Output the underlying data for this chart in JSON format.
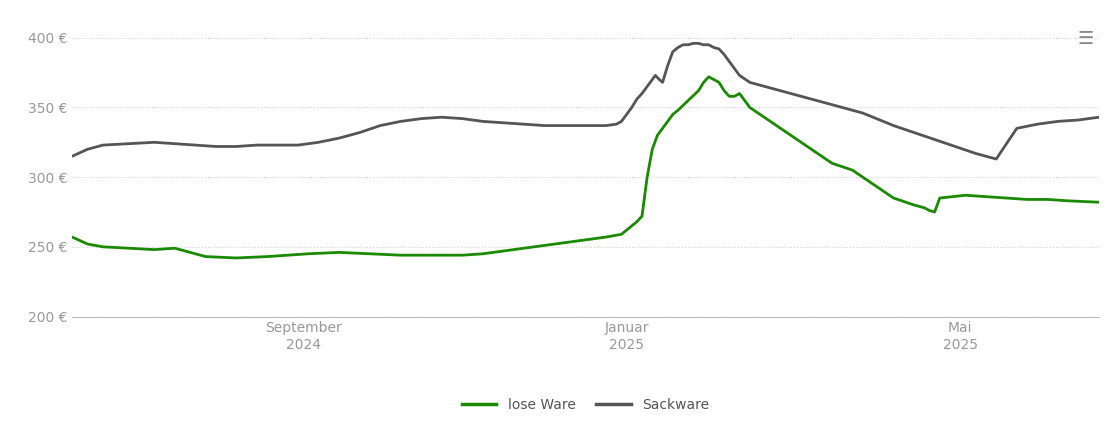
{
  "background_color": "#ffffff",
  "grid_color": "#d0d0d0",
  "lose_ware_color": "#1a8a00",
  "sackware_color": "#555555",
  "legend_labels": [
    "lose Ware",
    "Sackware"
  ],
  "xtick_labels": [
    "September\n2024",
    "Januar\n2025",
    "Mai\n2025"
  ],
  "xtick_positions": [
    0.225,
    0.54,
    0.865
  ],
  "ylim": [
    200,
    415
  ],
  "yticks": [
    200,
    250,
    300,
    350,
    400
  ],
  "ytick_labels": [
    "200 €",
    "250 €",
    "300 €",
    "350 €",
    "400 €"
  ],
  "lose_ware": {
    "x": [
      0.0,
      0.015,
      0.03,
      0.055,
      0.08,
      0.1,
      0.13,
      0.16,
      0.19,
      0.21,
      0.23,
      0.26,
      0.29,
      0.32,
      0.35,
      0.38,
      0.4,
      0.42,
      0.44,
      0.46,
      0.48,
      0.5,
      0.52,
      0.535,
      0.54,
      0.545,
      0.55,
      0.555,
      0.56,
      0.565,
      0.57,
      0.575,
      0.58,
      0.585,
      0.59,
      0.6,
      0.61,
      0.615,
      0.62,
      0.625,
      0.63,
      0.635,
      0.64,
      0.645,
      0.65,
      0.655,
      0.66,
      0.67,
      0.68,
      0.69,
      0.7,
      0.71,
      0.72,
      0.73,
      0.74,
      0.76,
      0.78,
      0.8,
      0.82,
      0.83,
      0.835,
      0.84,
      0.845,
      0.87,
      0.89,
      0.91,
      0.93,
      0.95,
      0.97,
      1.0
    ],
    "y": [
      257,
      252,
      250,
      249,
      248,
      249,
      243,
      242,
      243,
      244,
      245,
      246,
      245,
      244,
      244,
      244,
      245,
      247,
      249,
      251,
      253,
      255,
      257,
      259,
      262,
      265,
      268,
      272,
      300,
      320,
      330,
      335,
      340,
      345,
      348,
      355,
      362,
      368,
      372,
      370,
      368,
      362,
      358,
      358,
      360,
      355,
      350,
      345,
      340,
      335,
      330,
      325,
      320,
      315,
      310,
      305,
      295,
      285,
      280,
      278,
      276,
      275,
      285,
      287,
      286,
      285,
      284,
      284,
      283,
      282
    ]
  },
  "sackware": {
    "x": [
      0.0,
      0.015,
      0.03,
      0.055,
      0.08,
      0.1,
      0.12,
      0.14,
      0.16,
      0.18,
      0.2,
      0.22,
      0.24,
      0.26,
      0.28,
      0.3,
      0.32,
      0.34,
      0.36,
      0.38,
      0.4,
      0.42,
      0.44,
      0.46,
      0.48,
      0.5,
      0.52,
      0.53,
      0.535,
      0.54,
      0.545,
      0.55,
      0.555,
      0.56,
      0.565,
      0.568,
      0.572,
      0.575,
      0.58,
      0.585,
      0.59,
      0.595,
      0.6,
      0.605,
      0.61,
      0.615,
      0.62,
      0.625,
      0.63,
      0.635,
      0.64,
      0.65,
      0.66,
      0.67,
      0.68,
      0.69,
      0.7,
      0.71,
      0.72,
      0.73,
      0.74,
      0.75,
      0.76,
      0.77,
      0.78,
      0.79,
      0.8,
      0.82,
      0.84,
      0.86,
      0.88,
      0.9,
      0.92,
      0.94,
      0.96,
      0.98,
      1.0
    ],
    "y": [
      315,
      320,
      323,
      324,
      325,
      324,
      323,
      322,
      322,
      323,
      323,
      323,
      325,
      328,
      332,
      337,
      340,
      342,
      343,
      342,
      340,
      339,
      338,
      337,
      337,
      337,
      337,
      338,
      340,
      345,
      350,
      356,
      360,
      365,
      370,
      373,
      370,
      368,
      380,
      390,
      393,
      395,
      395,
      396,
      396,
      395,
      395,
      393,
      392,
      388,
      383,
      373,
      368,
      366,
      364,
      362,
      360,
      358,
      356,
      354,
      352,
      350,
      348,
      346,
      343,
      340,
      337,
      332,
      327,
      322,
      317,
      313,
      335,
      338,
      340,
      341,
      343
    ]
  }
}
